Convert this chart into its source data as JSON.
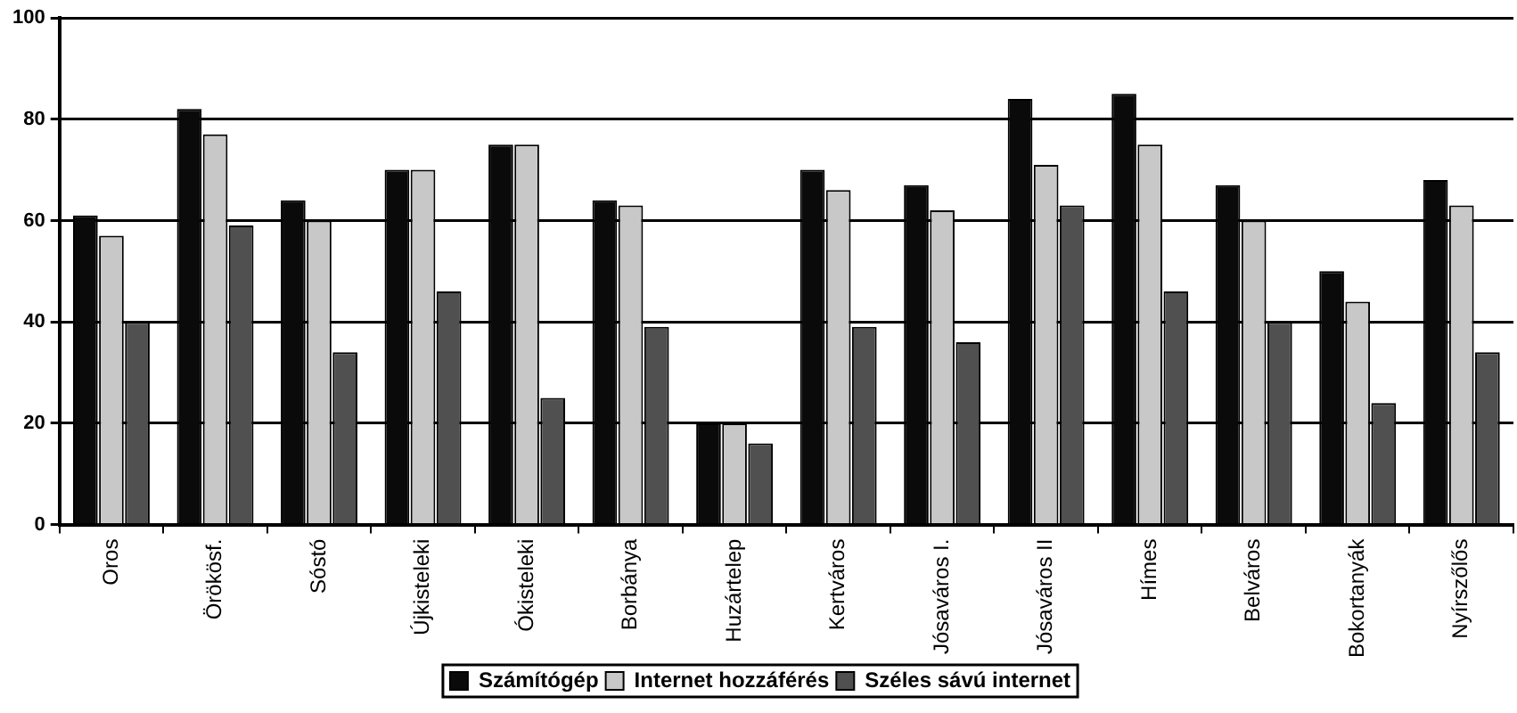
{
  "chart_data": {
    "type": "bar",
    "categories": [
      "Oros",
      "Örökösf.",
      "Sóstó",
      "Újkisteleki",
      "Ókisteleki",
      "Borbánya",
      "Huzártelep",
      "Kertváros",
      "Jósaváros I.",
      "Jósaváros II",
      "Hímes",
      "Belváros",
      "Bokortanyák",
      "Nyírszőlős"
    ],
    "series": [
      {
        "name": "Számítógép",
        "color": "#0a0a0a",
        "values": [
          61,
          82,
          64,
          70,
          75,
          64,
          20,
          70,
          67,
          84,
          85,
          67,
          50,
          68
        ]
      },
      {
        "name": "Internet hozzáférés",
        "color": "#c8c8c8",
        "values": [
          57,
          77,
          60,
          70,
          75,
          63,
          20,
          66,
          62,
          71,
          75,
          60,
          44,
          63
        ]
      },
      {
        "name": "Széles sávú internet",
        "color": "#505050",
        "values": [
          40,
          59,
          34,
          46,
          25,
          39,
          16,
          39,
          36,
          63,
          46,
          40,
          24,
          34
        ]
      }
    ],
    "ylim": [
      0,
      100
    ],
    "yticks": [
      0,
      20,
      40,
      60,
      80,
      100
    ],
    "grid": "y",
    "legend": "bottom"
  }
}
